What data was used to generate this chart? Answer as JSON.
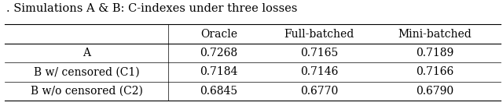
{
  "title": ". Simulations A & B: C-indexes under three losses",
  "col_headers": [
    "Oracle",
    "Full-batched",
    "Mini-batched"
  ],
  "row_labels": [
    "A",
    "B w/ censored (C1)",
    "B w/o censored (C2)"
  ],
  "cell_text": [
    [
      "0.7268",
      "0.7165",
      "0.7189"
    ],
    [
      "0.7184",
      "0.7146",
      "0.7166"
    ],
    [
      "0.6845",
      "0.6770",
      "0.6790"
    ]
  ],
  "title_fontsize": 10.5,
  "table_fontsize": 10.0,
  "background_color": "#ffffff",
  "text_color": "#000000",
  "line_color": "#000000",
  "line_width": 0.8
}
